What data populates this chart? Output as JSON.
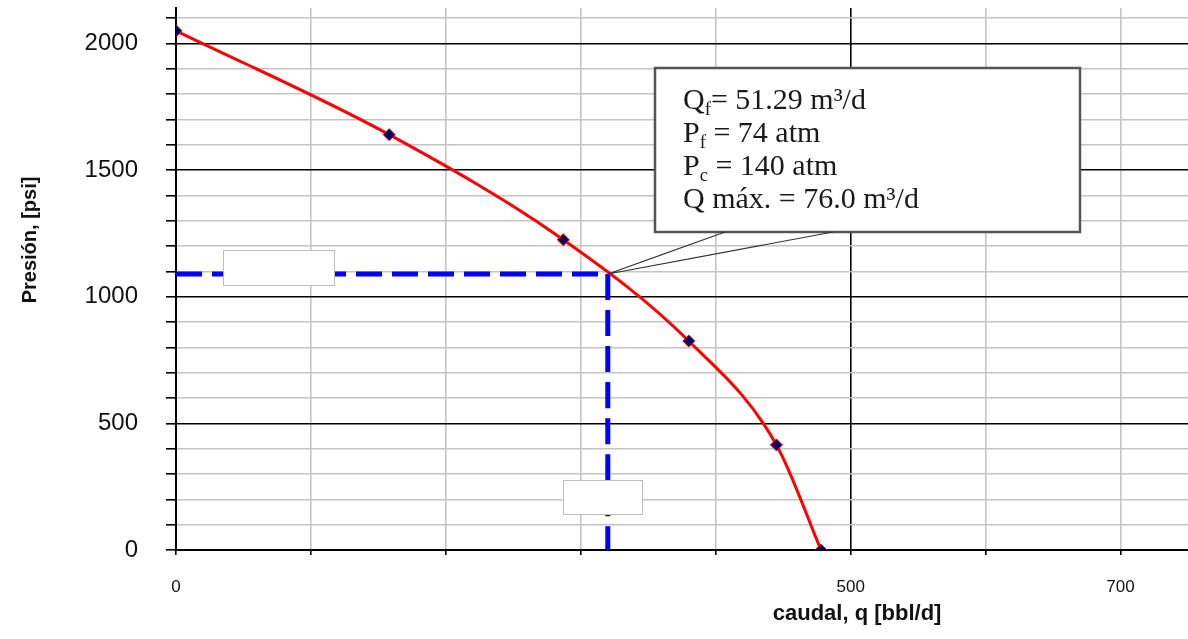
{
  "chart_data": {
    "type": "line",
    "xlabel": "caudal, q [bbl/d]",
    "ylabel": "Presión, [psi]",
    "xlim": [
      0,
      750
    ],
    "xticks": [
      0,
      {
        "value": 100,
        "label": null
      },
      {
        "value": 200,
        "label": null
      },
      {
        "value": 300,
        "label": null
      },
      {
        "value": 400,
        "label": null
      },
      500,
      {
        "value": 600,
        "label": null
      },
      700
    ],
    "ylim": [
      0,
      2140
    ],
    "yticks": [
      0,
      {
        "value": 100,
        "label": null
      },
      {
        "value": 200,
        "label": null
      },
      {
        "value": 300,
        "label": null
      },
      {
        "value": 400,
        "label": null
      },
      500,
      {
        "value": 600,
        "label": null
      },
      {
        "value": 700,
        "label": null
      },
      {
        "value": 800,
        "label": null
      },
      {
        "value": 900,
        "label": null
      },
      1000,
      {
        "value": 1100,
        "label": null
      },
      {
        "value": 1200,
        "label": null
      },
      {
        "value": 1300,
        "label": null
      },
      {
        "value": 1400,
        "label": null
      },
      1500,
      {
        "value": 1600,
        "label": null
      },
      {
        "value": 1700,
        "label": null
      },
      {
        "value": 1800,
        "label": null
      },
      {
        "value": 1900,
        "label": null
      },
      2000,
      {
        "value": 2100,
        "label": null
      }
    ],
    "grid": true,
    "series": [
      {
        "x": [
          0,
          158,
          287,
          380,
          445,
          478
        ],
        "values": [
          2050,
          1640,
          1225,
          825,
          415,
          0
        ],
        "color": "#ff0000",
        "marker": "diamond",
        "line_style": "solid"
      },
      {
        "x": [
          0,
          320,
          320
        ],
        "values": [
          1090,
          1090,
          0
        ],
        "color": "#0000ff",
        "marker": "none",
        "line_style": "dashed"
      }
    ],
    "annotations": [
      "Q$_{f}$= 51.29 m³/d",
      "P$_{f}$ = 74 atm",
      "P$_{c}$ = 140 atm",
      "Q máx. = 76.0 m³/d"
    ]
  }
}
